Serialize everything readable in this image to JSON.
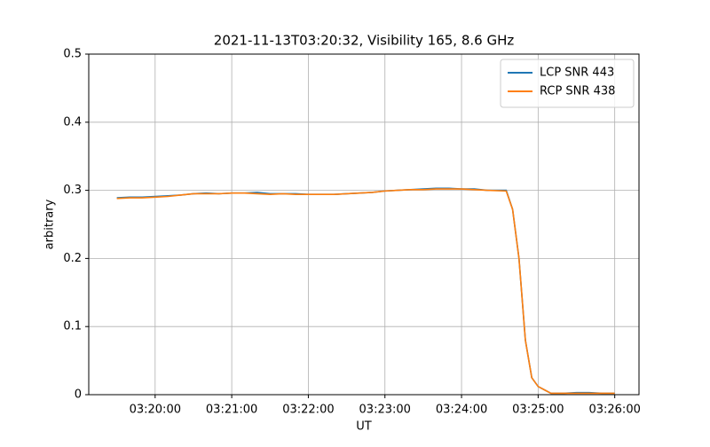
{
  "chart_data": {
    "type": "line",
    "title": "2021-11-13T03:20:32, Visibility 165, 8.6 GHz",
    "xlabel": "UT",
    "ylabel": "arbitrary",
    "x": [
      "03:19:30",
      "03:19:40",
      "03:19:50",
      "03:20:00",
      "03:20:10",
      "03:20:20",
      "03:20:30",
      "03:20:40",
      "03:20:50",
      "03:21:00",
      "03:21:10",
      "03:21:20",
      "03:21:30",
      "03:21:40",
      "03:21:50",
      "03:22:00",
      "03:22:10",
      "03:22:20",
      "03:22:30",
      "03:22:40",
      "03:22:50",
      "03:23:00",
      "03:23:10",
      "03:23:20",
      "03:23:30",
      "03:23:40",
      "03:23:50",
      "03:24:00",
      "03:24:10",
      "03:24:20",
      "03:24:35",
      "03:24:40",
      "03:24:45",
      "03:24:50",
      "03:24:55",
      "03:25:00",
      "03:25:05",
      "03:25:10",
      "03:25:20",
      "03:25:30",
      "03:25:40",
      "03:25:50",
      "03:26:00"
    ],
    "series": [
      {
        "name": "LCP SNR 443",
        "color": "#1f77b4",
        "values": [
          0.289,
          0.29,
          0.29,
          0.291,
          0.292,
          0.293,
          0.295,
          0.296,
          0.295,
          0.296,
          0.296,
          0.297,
          0.295,
          0.295,
          0.295,
          0.294,
          0.294,
          0.294,
          0.295,
          0.296,
          0.297,
          0.299,
          0.3,
          0.301,
          0.302,
          0.303,
          0.303,
          0.302,
          0.302,
          0.3,
          0.3,
          0.272,
          0.2,
          0.08,
          0.025,
          0.012,
          0.007,
          0.002,
          0.002,
          0.003,
          0.003,
          0.002,
          0.002
        ]
      },
      {
        "name": "RCP SNR 438",
        "color": "#ff7f0e",
        "values": [
          0.288,
          0.289,
          0.289,
          0.29,
          0.291,
          0.293,
          0.295,
          0.295,
          0.295,
          0.296,
          0.296,
          0.295,
          0.294,
          0.295,
          0.294,
          0.294,
          0.294,
          0.294,
          0.295,
          0.296,
          0.297,
          0.299,
          0.3,
          0.301,
          0.301,
          0.302,
          0.302,
          0.302,
          0.301,
          0.3,
          0.299,
          0.272,
          0.2,
          0.08,
          0.025,
          0.012,
          0.007,
          0.002,
          0.002,
          0.002,
          0.002,
          0.002,
          0.002
        ]
      }
    ],
    "xlim": [
      "03:19:08",
      "03:26:19"
    ],
    "xticks": [
      "03:20:00",
      "03:21:00",
      "03:22:00",
      "03:23:00",
      "03:24:00",
      "03:25:00",
      "03:26:00"
    ],
    "ylim": [
      0,
      0.5
    ],
    "yticks": [
      0.0,
      0.1,
      0.2,
      0.3,
      0.4,
      0.5
    ],
    "grid": true,
    "legend": "upper right"
  }
}
